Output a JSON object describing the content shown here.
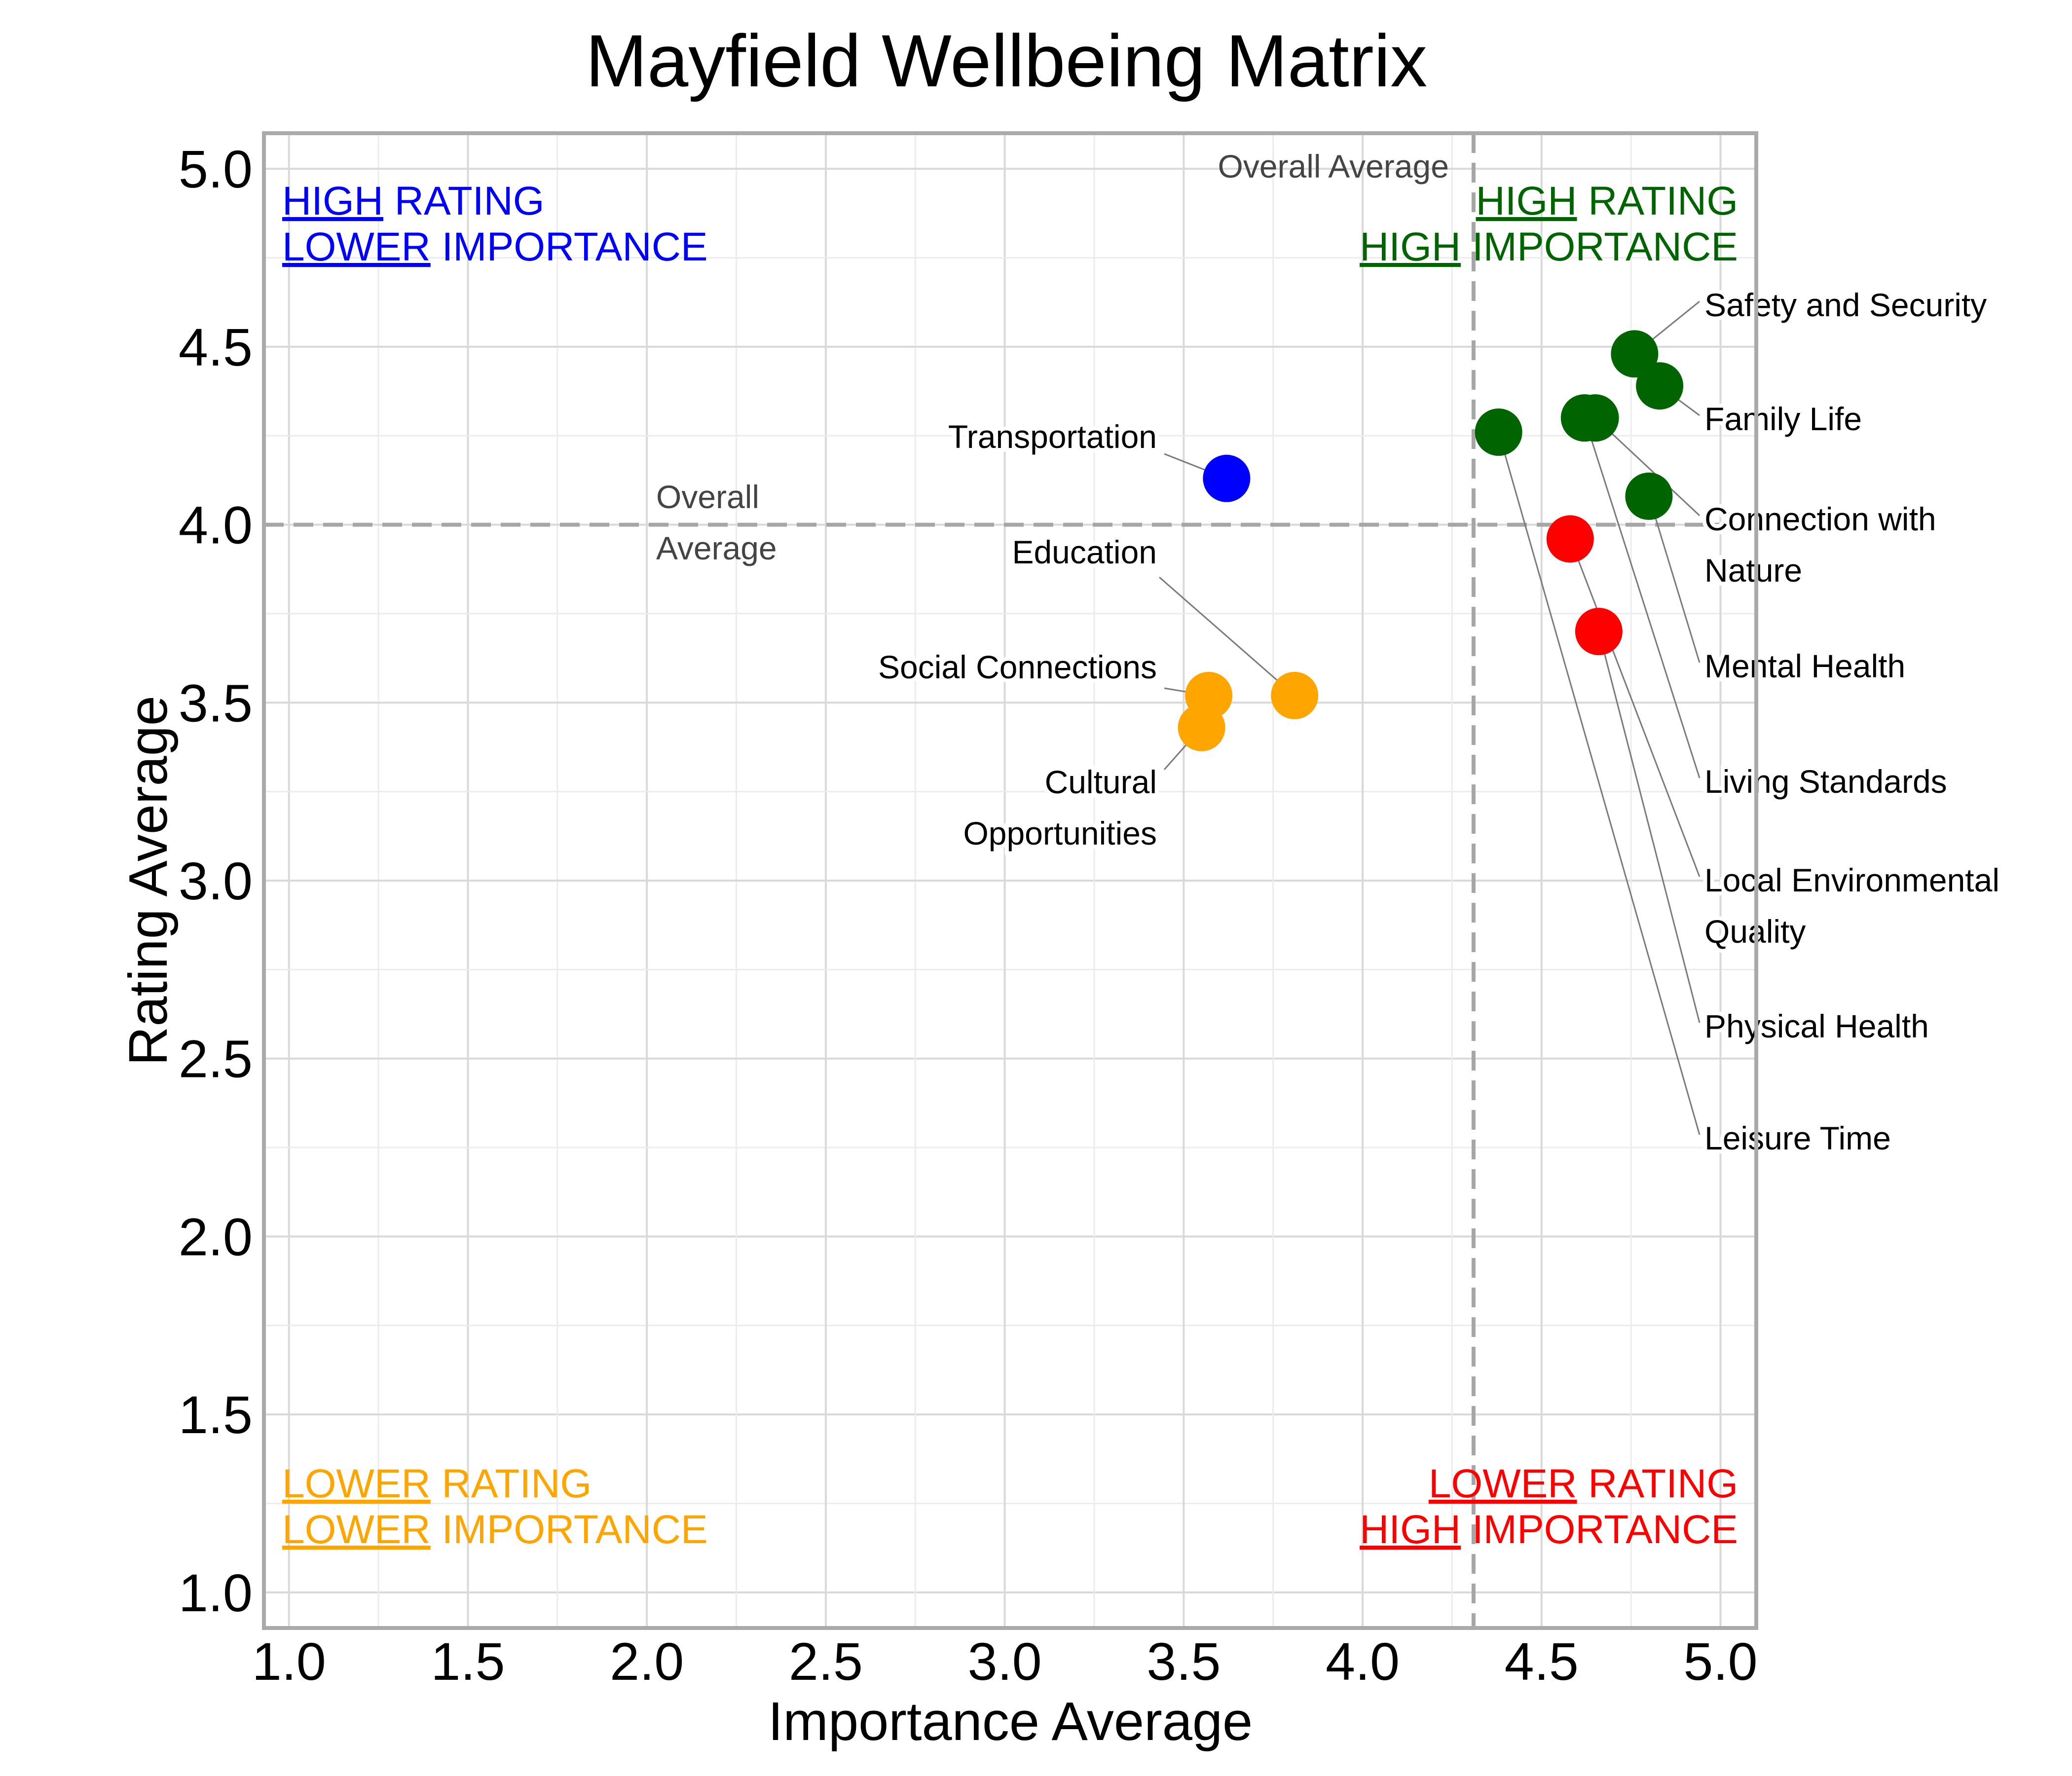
{
  "chart_data": {
    "type": "scatter",
    "title": "Mayfield Wellbeing Matrix",
    "xlabel": "Importance Average",
    "ylabel": "Rating Average",
    "xlim": [
      0.93,
      5.1
    ],
    "ylim": [
      0.9,
      5.1
    ],
    "x_ticks": [
      "1.0",
      "1.5",
      "2.0",
      "2.5",
      "3.0",
      "3.5",
      "4.0",
      "4.5",
      "5.0"
    ],
    "y_ticks": [
      "1.0",
      "1.5",
      "2.0",
      "2.5",
      "3.0",
      "3.5",
      "4.0",
      "4.5",
      "5.0"
    ],
    "grid": true,
    "average_lines": {
      "x": 4.31,
      "y": 4.0,
      "x_label": "Overall Average",
      "y_label_lines": [
        "Overall",
        "Average"
      ]
    },
    "colors": {
      "high_rating_high_importance": "#006400",
      "high_rating_lower_importance": "#0000ff",
      "lower_rating_lower_importance": "#ffa500",
      "lower_rating_high_importance": "#ff0000"
    },
    "quadrants": [
      {
        "key": "high_rating_lower_importance",
        "position": "top-left",
        "line1_u": "HIGH",
        "line1_rest": " RATING",
        "line2_u": "LOWER",
        "line2_rest": " IMPORTANCE"
      },
      {
        "key": "high_rating_high_importance",
        "position": "top-right",
        "line1_u": "HIGH",
        "line1_rest": " RATING",
        "line2_u": "HIGH",
        "line2_rest": " IMPORTANCE"
      },
      {
        "key": "lower_rating_lower_importance",
        "position": "bottom-left",
        "line1_u": "LOWER",
        "line1_rest": " RATING",
        "line2_u": "LOWER",
        "line2_rest": " IMPORTANCE"
      },
      {
        "key": "lower_rating_high_importance",
        "position": "bottom-right",
        "line1_u": "LOWER",
        "line1_rest": " RATING",
        "line2_u": "HIGH",
        "line2_rest": " IMPORTANCE"
      }
    ],
    "points": [
      {
        "name": "Safety and Security",
        "label_lines": [
          "Safety and Security"
        ],
        "x": 4.76,
        "y": 4.48,
        "group": "high_rating_high_importance",
        "side": "right"
      },
      {
        "name": "Family Life",
        "label_lines": [
          "Family Life"
        ],
        "x": 4.83,
        "y": 4.39,
        "group": "high_rating_high_importance",
        "side": "right"
      },
      {
        "name": "Connection with Nature",
        "label_lines": [
          "Connection with",
          "Nature"
        ],
        "x": 4.65,
        "y": 4.3,
        "group": "high_rating_high_importance",
        "side": "right"
      },
      {
        "name": "Mental Health",
        "label_lines": [
          "Mental Health"
        ],
        "x": 4.8,
        "y": 4.08,
        "group": "high_rating_high_importance",
        "side": "right"
      },
      {
        "name": "Living Standards",
        "label_lines": [
          "Living Standards"
        ],
        "x": 4.62,
        "y": 4.3,
        "group": "high_rating_high_importance",
        "side": "right"
      },
      {
        "name": "Local Environmental Quality",
        "label_lines": [
          "Local Environmental",
          "Quality"
        ],
        "x": 4.58,
        "y": 3.96,
        "group": "lower_rating_high_importance",
        "side": "right"
      },
      {
        "name": "Physical Health",
        "label_lines": [
          "Physical Health"
        ],
        "x": 4.66,
        "y": 3.7,
        "group": "lower_rating_high_importance",
        "side": "right"
      },
      {
        "name": "Leisure Time",
        "label_lines": [
          "Leisure Time"
        ],
        "x": 4.38,
        "y": 4.26,
        "group": "high_rating_high_importance",
        "side": "right"
      },
      {
        "name": "Transportation",
        "label_lines": [
          "Transportation"
        ],
        "x": 3.62,
        "y": 4.13,
        "group": "high_rating_lower_importance",
        "side": "left"
      },
      {
        "name": "Education",
        "label_lines": [
          "Education"
        ],
        "x": 3.81,
        "y": 3.52,
        "group": "lower_rating_lower_importance",
        "side": "left"
      },
      {
        "name": "Social Connections",
        "label_lines": [
          "Social Connections"
        ],
        "x": 3.57,
        "y": 3.52,
        "group": "lower_rating_lower_importance",
        "side": "left"
      },
      {
        "name": "Cultural Opportunities",
        "label_lines": [
          "Cultural",
          "Opportunities"
        ],
        "x": 3.55,
        "y": 3.43,
        "group": "lower_rating_lower_importance",
        "side": "left"
      }
    ]
  }
}
